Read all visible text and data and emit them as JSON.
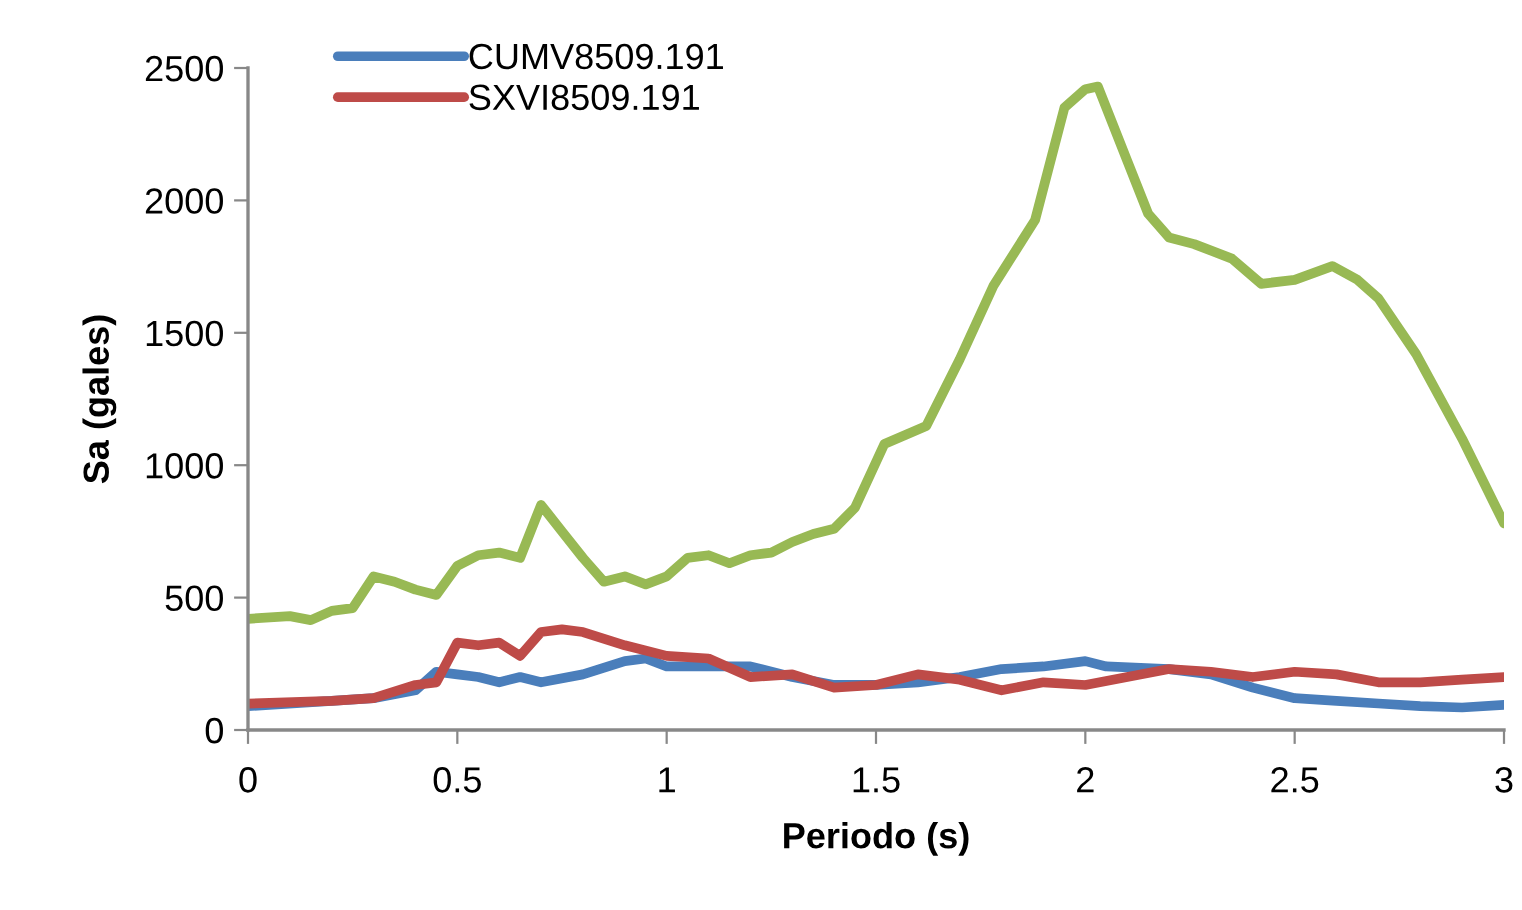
{
  "chart_data": {
    "type": "line",
    "xlabel": "Periodo (s)",
    "ylabel": "Sa (gales)",
    "xlim": [
      0,
      3
    ],
    "xticks": [
      0,
      0.5,
      1,
      1.5,
      2,
      2.5,
      3
    ],
    "ylim": [
      0,
      2500
    ],
    "yticks": [
      0,
      500,
      1000,
      1500,
      2000,
      2500
    ],
    "grid": false,
    "legend": "top left",
    "marker": "none",
    "line_style": "solid",
    "series": [
      {
        "name": "CUMV8509.191",
        "color": "#4a7ebb",
        "x": [
          0,
          0.2,
          0.3,
          0.4,
          0.45,
          0.5,
          0.55,
          0.6,
          0.65,
          0.7,
          0.8,
          0.9,
          0.95,
          1.0,
          1.1,
          1.2,
          1.3,
          1.4,
          1.5,
          1.6,
          1.7,
          1.8,
          1.9,
          2.0,
          2.05,
          2.2,
          2.3,
          2.4,
          2.5,
          2.6,
          2.7,
          2.8,
          2.9,
          3.0
        ],
        "values": [
          90,
          110,
          120,
          150,
          220,
          210,
          200,
          180,
          200,
          180,
          210,
          260,
          270,
          240,
          240,
          240,
          200,
          170,
          170,
          180,
          200,
          230,
          240,
          260,
          240,
          230,
          210,
          160,
          120,
          110,
          100,
          90,
          85,
          95
        ]
      },
      {
        "name": "SXVI8509.191",
        "color": "#be4b48",
        "x": [
          0,
          0.2,
          0.3,
          0.4,
          0.45,
          0.5,
          0.55,
          0.6,
          0.65,
          0.7,
          0.75,
          0.8,
          0.9,
          1.0,
          1.1,
          1.2,
          1.3,
          1.4,
          1.5,
          1.6,
          1.7,
          1.8,
          1.9,
          2.0,
          2.1,
          2.2,
          2.3,
          2.4,
          2.5,
          2.6,
          2.7,
          2.8,
          2.9,
          3.0
        ],
        "values": [
          100,
          110,
          120,
          170,
          180,
          330,
          320,
          330,
          280,
          370,
          380,
          370,
          320,
          280,
          270,
          200,
          210,
          160,
          170,
          210,
          190,
          150,
          180,
          170,
          200,
          230,
          220,
          200,
          220,
          210,
          180,
          180,
          190,
          200
        ]
      },
      {
        "color": "#98b954",
        "x": [
          0,
          0.1,
          0.15,
          0.2,
          0.25,
          0.3,
          0.35,
          0.4,
          0.45,
          0.5,
          0.55,
          0.6,
          0.65,
          0.7,
          0.75,
          0.8,
          0.85,
          0.9,
          0.95,
          1.0,
          1.05,
          1.1,
          1.15,
          1.2,
          1.25,
          1.3,
          1.35,
          1.4,
          1.45,
          1.52,
          1.62,
          1.7,
          1.78,
          1.88,
          1.95,
          2.0,
          2.03,
          2.1,
          2.15,
          2.2,
          2.26,
          2.35,
          2.42,
          2.5,
          2.59,
          2.65,
          2.7,
          2.79,
          2.9,
          3.0
        ],
        "values": [
          420,
          430,
          415,
          450,
          460,
          580,
          560,
          530,
          510,
          620,
          660,
          670,
          650,
          850,
          750,
          650,
          560,
          580,
          550,
          580,
          650,
          660,
          630,
          660,
          670,
          710,
          740,
          760,
          840,
          1080,
          1148,
          1400,
          1676,
          1926,
          2350,
          2420,
          2430,
          2150,
          1950,
          1860,
          1835,
          1780,
          1685,
          1700,
          1752,
          1700,
          1630,
          1420,
          1100,
          780
        ]
      }
    ]
  }
}
